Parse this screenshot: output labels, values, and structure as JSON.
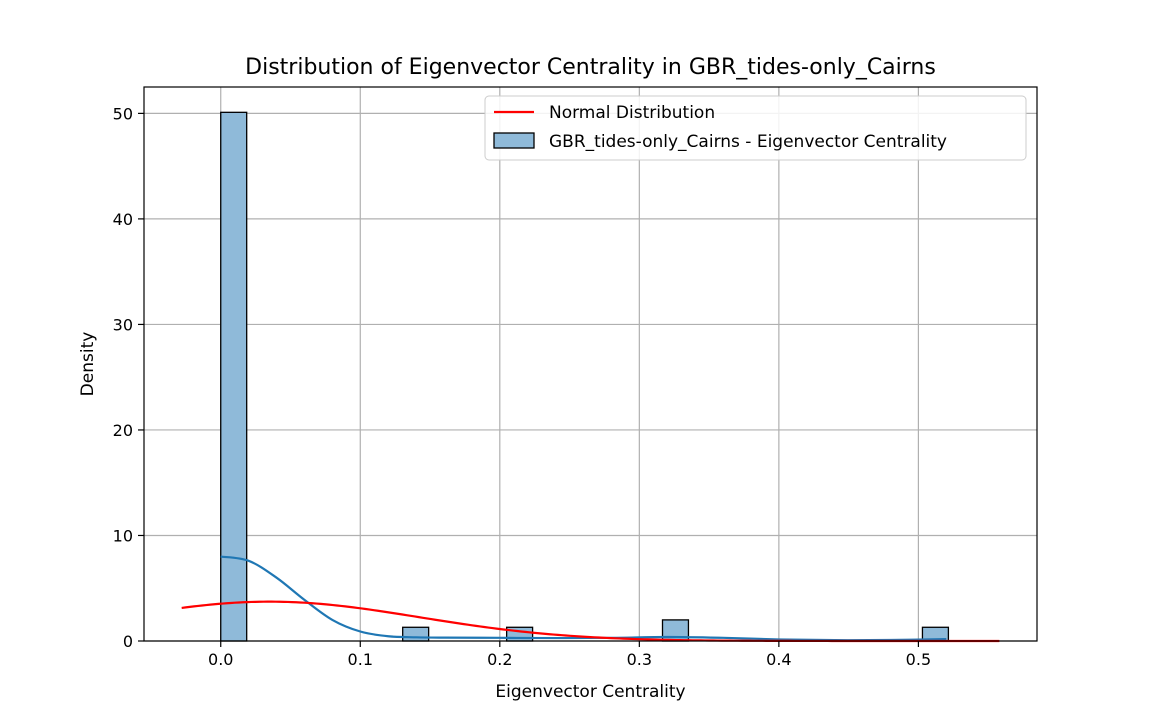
{
  "chart_data": {
    "type": "histogram",
    "title": "Distribution of Eigenvector Centrality in GBR_tides-only_Cairns",
    "xlabel": "Eigenvector Centrality",
    "ylabel": "Density",
    "xlim": [
      -0.055,
      0.585
    ],
    "ylim": [
      0,
      52.5
    ],
    "xticks": [
      0.0,
      0.1,
      0.2,
      0.3,
      0.4,
      0.5
    ],
    "xtick_labels": [
      "0.0",
      "0.1",
      "0.2",
      "0.3",
      "0.4",
      "0.5"
    ],
    "yticks": [
      0,
      10,
      20,
      30,
      40,
      50
    ],
    "ytick_labels": [
      "0",
      "10",
      "20",
      "30",
      "40",
      "50"
    ],
    "grid": true,
    "legend_position": "top-right",
    "histogram": {
      "name": "GBR_tides-only_Cairns - Eigenvector Centrality",
      "color": "#8fbad9",
      "edge_color": "#000000",
      "bins": [
        {
          "x0": 0.0,
          "x1": 0.0186,
          "density": 50.1
        },
        {
          "x0": 0.1304,
          "x1": 0.149,
          "density": 1.3
        },
        {
          "x0": 0.2049,
          "x1": 0.2235,
          "density": 1.3
        },
        {
          "x0": 0.3166,
          "x1": 0.3352,
          "density": 2.0
        },
        {
          "x0": 0.5029,
          "x1": 0.5215,
          "density": 1.3
        }
      ]
    },
    "kde": {
      "color": "#1f77b4",
      "x": [
        0.0,
        0.02,
        0.04,
        0.06,
        0.08,
        0.1,
        0.12,
        0.14,
        0.16,
        0.2,
        0.24,
        0.28,
        0.32,
        0.36,
        0.4,
        0.44,
        0.48,
        0.52
      ],
      "y": [
        8.0,
        7.6,
        6.0,
        3.9,
        2.0,
        0.9,
        0.45,
        0.35,
        0.32,
        0.3,
        0.28,
        0.3,
        0.38,
        0.3,
        0.15,
        0.08,
        0.1,
        0.18
      ]
    },
    "normal": {
      "name": "Normal Distribution",
      "color": "#ff0000",
      "mean": 0.035,
      "std": 0.107,
      "x_range": [
        -0.028,
        0.558
      ]
    }
  }
}
